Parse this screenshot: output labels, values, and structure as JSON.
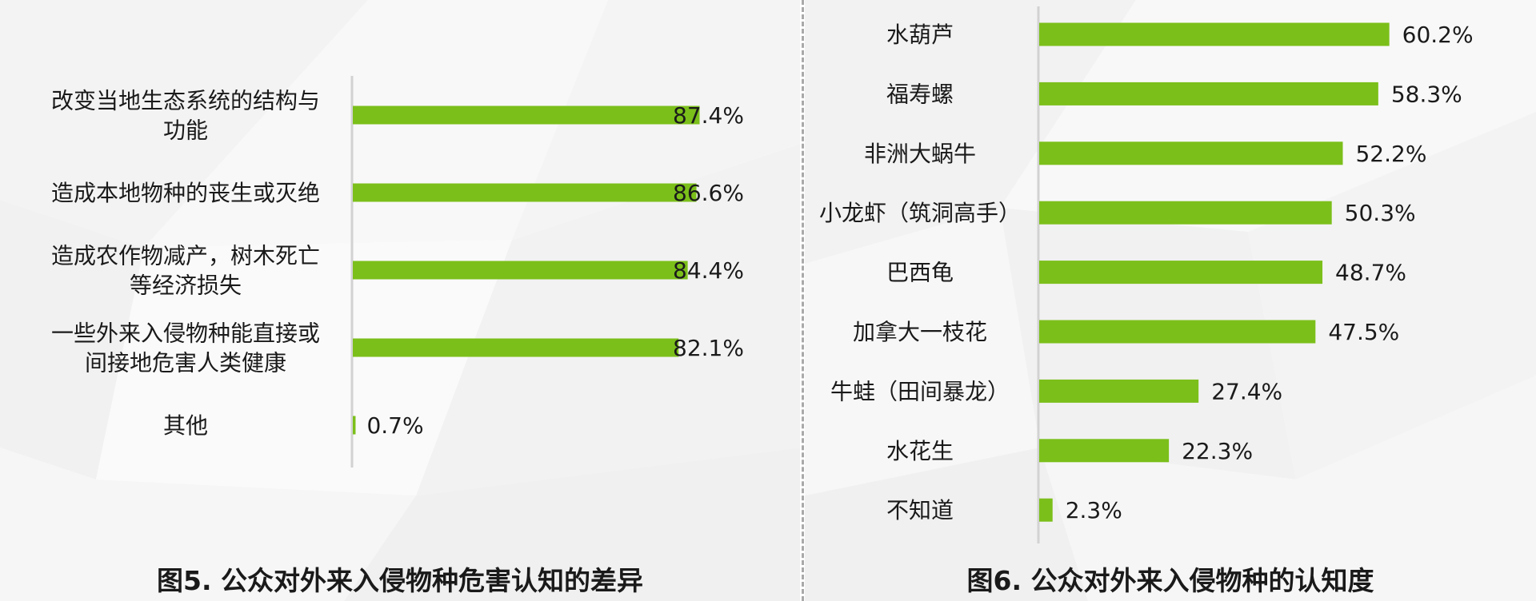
{
  "chart_data": [
    {
      "type": "bar",
      "orientation": "horizontal",
      "title": "图5. 公众对外来入侵物种危害认知的差异",
      "categories": [
        [
          "改变当地生态系统的结构与",
          "功能"
        ],
        [
          "造成本地物种的丧生或灭绝"
        ],
        [
          "造成农作物减产，树木死亡",
          "等经济损失"
        ],
        [
          "一些外来入侵物种能直接或",
          "间接地危害人类健康"
        ],
        [
          "其他"
        ]
      ],
      "values": [
        87.4,
        86.6,
        84.4,
        82.1,
        0.7
      ],
      "value_labels": [
        "87.4%",
        "86.6%",
        "84.4%",
        "82.1%",
        "0.7%"
      ],
      "xlim": [
        0,
        100
      ],
      "grid": false,
      "bar_color": "#7bbf1a"
    },
    {
      "type": "bar",
      "orientation": "horizontal",
      "title": "图6. 公众对外来入侵物种的认知度",
      "categories": [
        [
          "水葫芦"
        ],
        [
          "福寿螺"
        ],
        [
          "非洲大蜗牛"
        ],
        [
          "小龙虾（筑洞高手）"
        ],
        [
          "巴西龟"
        ],
        [
          "加拿大一枝花"
        ],
        [
          "牛蛙（田间暴龙）"
        ],
        [
          "水花生"
        ],
        [
          "不知道"
        ]
      ],
      "values": [
        60.2,
        58.3,
        52.2,
        50.3,
        48.7,
        47.5,
        27.4,
        22.3,
        2.3
      ],
      "value_labels": [
        "60.2%",
        "58.3%",
        "52.2%",
        "50.3%",
        "48.7%",
        "47.5%",
        "27.4%",
        "22.3%",
        "2.3%"
      ],
      "xlim": [
        0,
        100
      ],
      "grid": false,
      "bar_color": "#7bbf1a"
    }
  ]
}
